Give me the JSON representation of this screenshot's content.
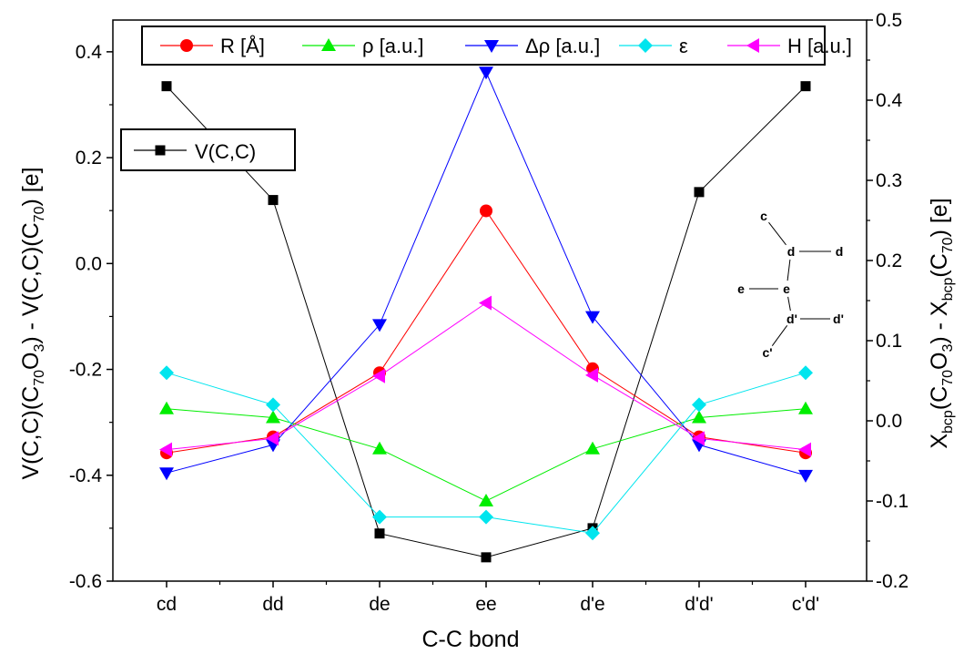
{
  "chart_data": {
    "type": "line",
    "categories": [
      "cd",
      "dd",
      "de",
      "ee",
      "d'e",
      "d'd'",
      "c'd'"
    ],
    "xlabel": "C-C bond",
    "left_axis": {
      "label_parts": [
        "V(C,C)(C",
        "70",
        "O",
        "3",
        ") - V(C,C)(C",
        "70",
        ") [e]"
      ],
      "ylim": [
        -0.6,
        0.46
      ],
      "ticks": [
        "-0.6",
        "-0.4",
        "-0.2",
        "0.0",
        "0.2",
        "0.4"
      ]
    },
    "right_axis": {
      "label_parts": [
        "X",
        "bcp",
        "(C",
        "70",
        "O",
        "3",
        ") - X",
        "bcp",
        "(C",
        "70",
        ") [e]"
      ],
      "ylim": [
        -0.2,
        0.5
      ],
      "ticks": [
        "-0.2",
        "-0.1",
        "0.0",
        "0.1",
        "0.2",
        "0.3",
        "0.4",
        "0.5"
      ]
    },
    "grid": false,
    "legend_top": {
      "placement": "top",
      "entries": [
        "R [Å]",
        "ρ [a.u.]",
        "Δρ [a.u.]",
        "ε",
        "H  [a.u.]"
      ]
    },
    "legend_left": {
      "placement": "top-left",
      "entries": [
        "V(C,C)"
      ]
    },
    "series": [
      {
        "name": "V(C,C)",
        "axis": "left",
        "color": "#000000",
        "marker": "square",
        "values": [
          0.335,
          0.12,
          -0.51,
          -0.555,
          -0.5,
          0.135,
          0.335
        ]
      },
      {
        "name": "R [Å]",
        "axis": "right",
        "color": "#ff0000",
        "marker": "circle",
        "values": [
          -0.04,
          -0.02,
          0.06,
          0.262,
          0.065,
          -0.02,
          -0.04
        ]
      },
      {
        "name": "ρ [a.u.]",
        "axis": "right",
        "color": "#00ee00",
        "marker": "triangle-up",
        "values": [
          0.015,
          0.004,
          -0.035,
          -0.1,
          -0.035,
          0.004,
          0.015
        ]
      },
      {
        "name": "Δρ [a.u.]",
        "axis": "right",
        "color": "#0000ff",
        "marker": "triangle-down",
        "values": [
          -0.065,
          -0.03,
          0.12,
          0.435,
          0.13,
          -0.03,
          -0.068
        ]
      },
      {
        "name": "ε",
        "axis": "right",
        "color": "#00e5ee",
        "marker": "diamond",
        "values": [
          0.06,
          0.02,
          -0.12,
          -0.12,
          -0.14,
          0.02,
          0.06
        ]
      },
      {
        "name": "H  [a.u.]",
        "axis": "right",
        "color": "#ff00ff",
        "marker": "triangle-left",
        "values": [
          -0.036,
          -0.022,
          0.056,
          0.147,
          0.057,
          -0.022,
          -0.036
        ]
      }
    ],
    "inset": {
      "nodes": [
        {
          "label": "c"
        },
        {
          "label": "d"
        },
        {
          "label": "d"
        },
        {
          "label": "e"
        },
        {
          "label": "e"
        },
        {
          "label": "d'"
        },
        {
          "label": "d'"
        },
        {
          "label": "c'"
        }
      ]
    }
  }
}
